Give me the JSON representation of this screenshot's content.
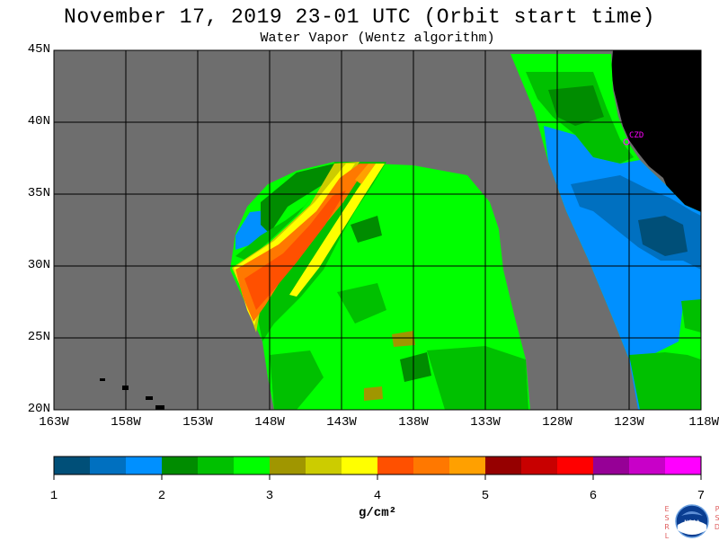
{
  "title": "November 17, 2019  23-01 UTC  (Orbit start time)",
  "subtitle": "Water Vapor (Wentz algorithm)",
  "latitude_labels": [
    "45N",
    "40N",
    "35N",
    "30N",
    "25N",
    "20N"
  ],
  "longitude_labels": [
    "163W",
    "158W",
    "153W",
    "148W",
    "143W",
    "138W",
    "133W",
    "128W",
    "123W",
    "118W"
  ],
  "station_label": "CZD",
  "colorbar": {
    "ticks": [
      "1",
      "2",
      "3",
      "4",
      "5",
      "6",
      "7"
    ],
    "units": "g/cm²",
    "colors": [
      "#004f78",
      "#0070c0",
      "#0090ff",
      "#008c00",
      "#00c000",
      "#00ff00",
      "#a09600",
      "#cccc00",
      "#ffff00",
      "#ff5000",
      "#ff7800",
      "#ffa000",
      "#960000",
      "#c80000",
      "#ff0000",
      "#960096",
      "#c800c8",
      "#ff00ff"
    ]
  },
  "map_colors": {
    "no_data": "#6e6e6e",
    "land": "#000000",
    "grid": "#000000",
    "station": "#ff00ff"
  },
  "logo": {
    "left_letters": [
      "E",
      "S",
      "R",
      "L"
    ],
    "right_letters": [
      "P",
      "S",
      "D"
    ],
    "center_text": "NOAA"
  }
}
